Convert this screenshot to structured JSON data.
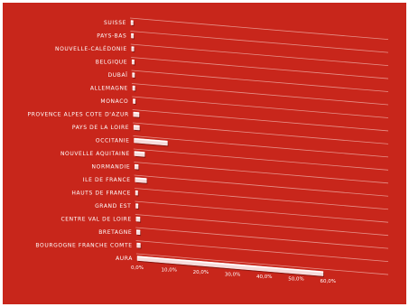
{
  "chart_data": {
    "type": "bar",
    "orientation": "horizontal",
    "categories": [
      "SUISSE",
      "PAYS-BAS",
      "NOUVELLE-CALÉDONIE",
      "BELGIQUE",
      "DUBAÏ",
      "ALLEMAGNE",
      "MONACO",
      "PROVENCE ALPES COTE D'AZUR",
      "PAYS DE LA LOIRE",
      "OCCITANIE",
      "NOUVELLE AQUITAINE",
      "NORMANDIE",
      "ILE DE FRANCE",
      "HAUTS DE FRANCE",
      "GRAND EST",
      "CENTRE VAL DE LOIRE",
      "BRETAGNE",
      "BOURGOGNE FRANCHE COMTE",
      "AURA"
    ],
    "values": [
      0.3,
      0.3,
      0.3,
      0.3,
      0.3,
      0.4,
      0.4,
      1.8,
      1.8,
      10.5,
      3.2,
      1.1,
      3.6,
      0.7,
      0.7,
      1.2,
      1.1,
      1.1,
      58.5
    ],
    "value_unit": "%",
    "xlim": [
      0,
      60
    ],
    "x_ticks": [
      "0,0%",
      "10,0%",
      "20,0%",
      "30,0%",
      "40,0%",
      "50,0%",
      "60,0%"
    ],
    "title": "",
    "xlabel": "",
    "ylabel": "",
    "grid": true,
    "legend": "none",
    "colors": {
      "background": "#c8261b",
      "bar": "#f6dada",
      "text": "#ffffff"
    }
  }
}
